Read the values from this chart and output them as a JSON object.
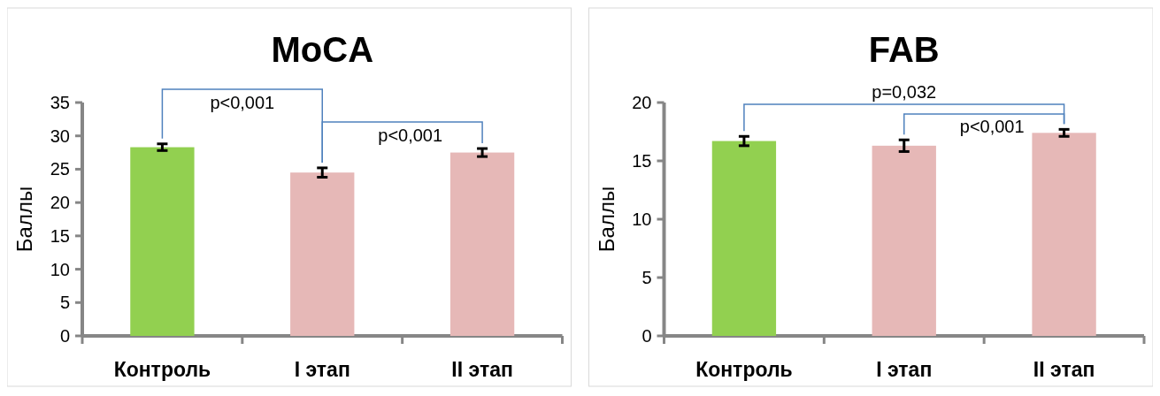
{
  "chart_data": [
    {
      "type": "bar",
      "title": "MoCA",
      "ylabel": "Баллы",
      "categories": [
        "Контроль",
        "I этап",
        "II этап"
      ],
      "values": [
        28.3,
        24.5,
        27.5
      ],
      "errors": [
        0.5,
        0.7,
        0.6
      ],
      "colors": [
        "#92d050",
        "#e6b8b7",
        "#e6b8b7"
      ],
      "ylim": [
        0,
        35
      ],
      "yticks": [
        0,
        5,
        10,
        15,
        20,
        25,
        30,
        35
      ],
      "annotations": [
        "p<0,001",
        "p<0,001"
      ]
    },
    {
      "type": "bar",
      "title": "FAB",
      "ylabel": "Баллы",
      "categories": [
        "Контроль",
        "I этап",
        "II этап"
      ],
      "values": [
        16.7,
        16.3,
        17.4
      ],
      "errors": [
        0.4,
        0.5,
        0.3
      ],
      "colors": [
        "#92d050",
        "#e6b8b7",
        "#e6b8b7"
      ],
      "ylim": [
        0,
        20
      ],
      "yticks": [
        0,
        5,
        10,
        15,
        20
      ],
      "annotations": [
        "p=0,032",
        "p<0,001"
      ]
    }
  ]
}
